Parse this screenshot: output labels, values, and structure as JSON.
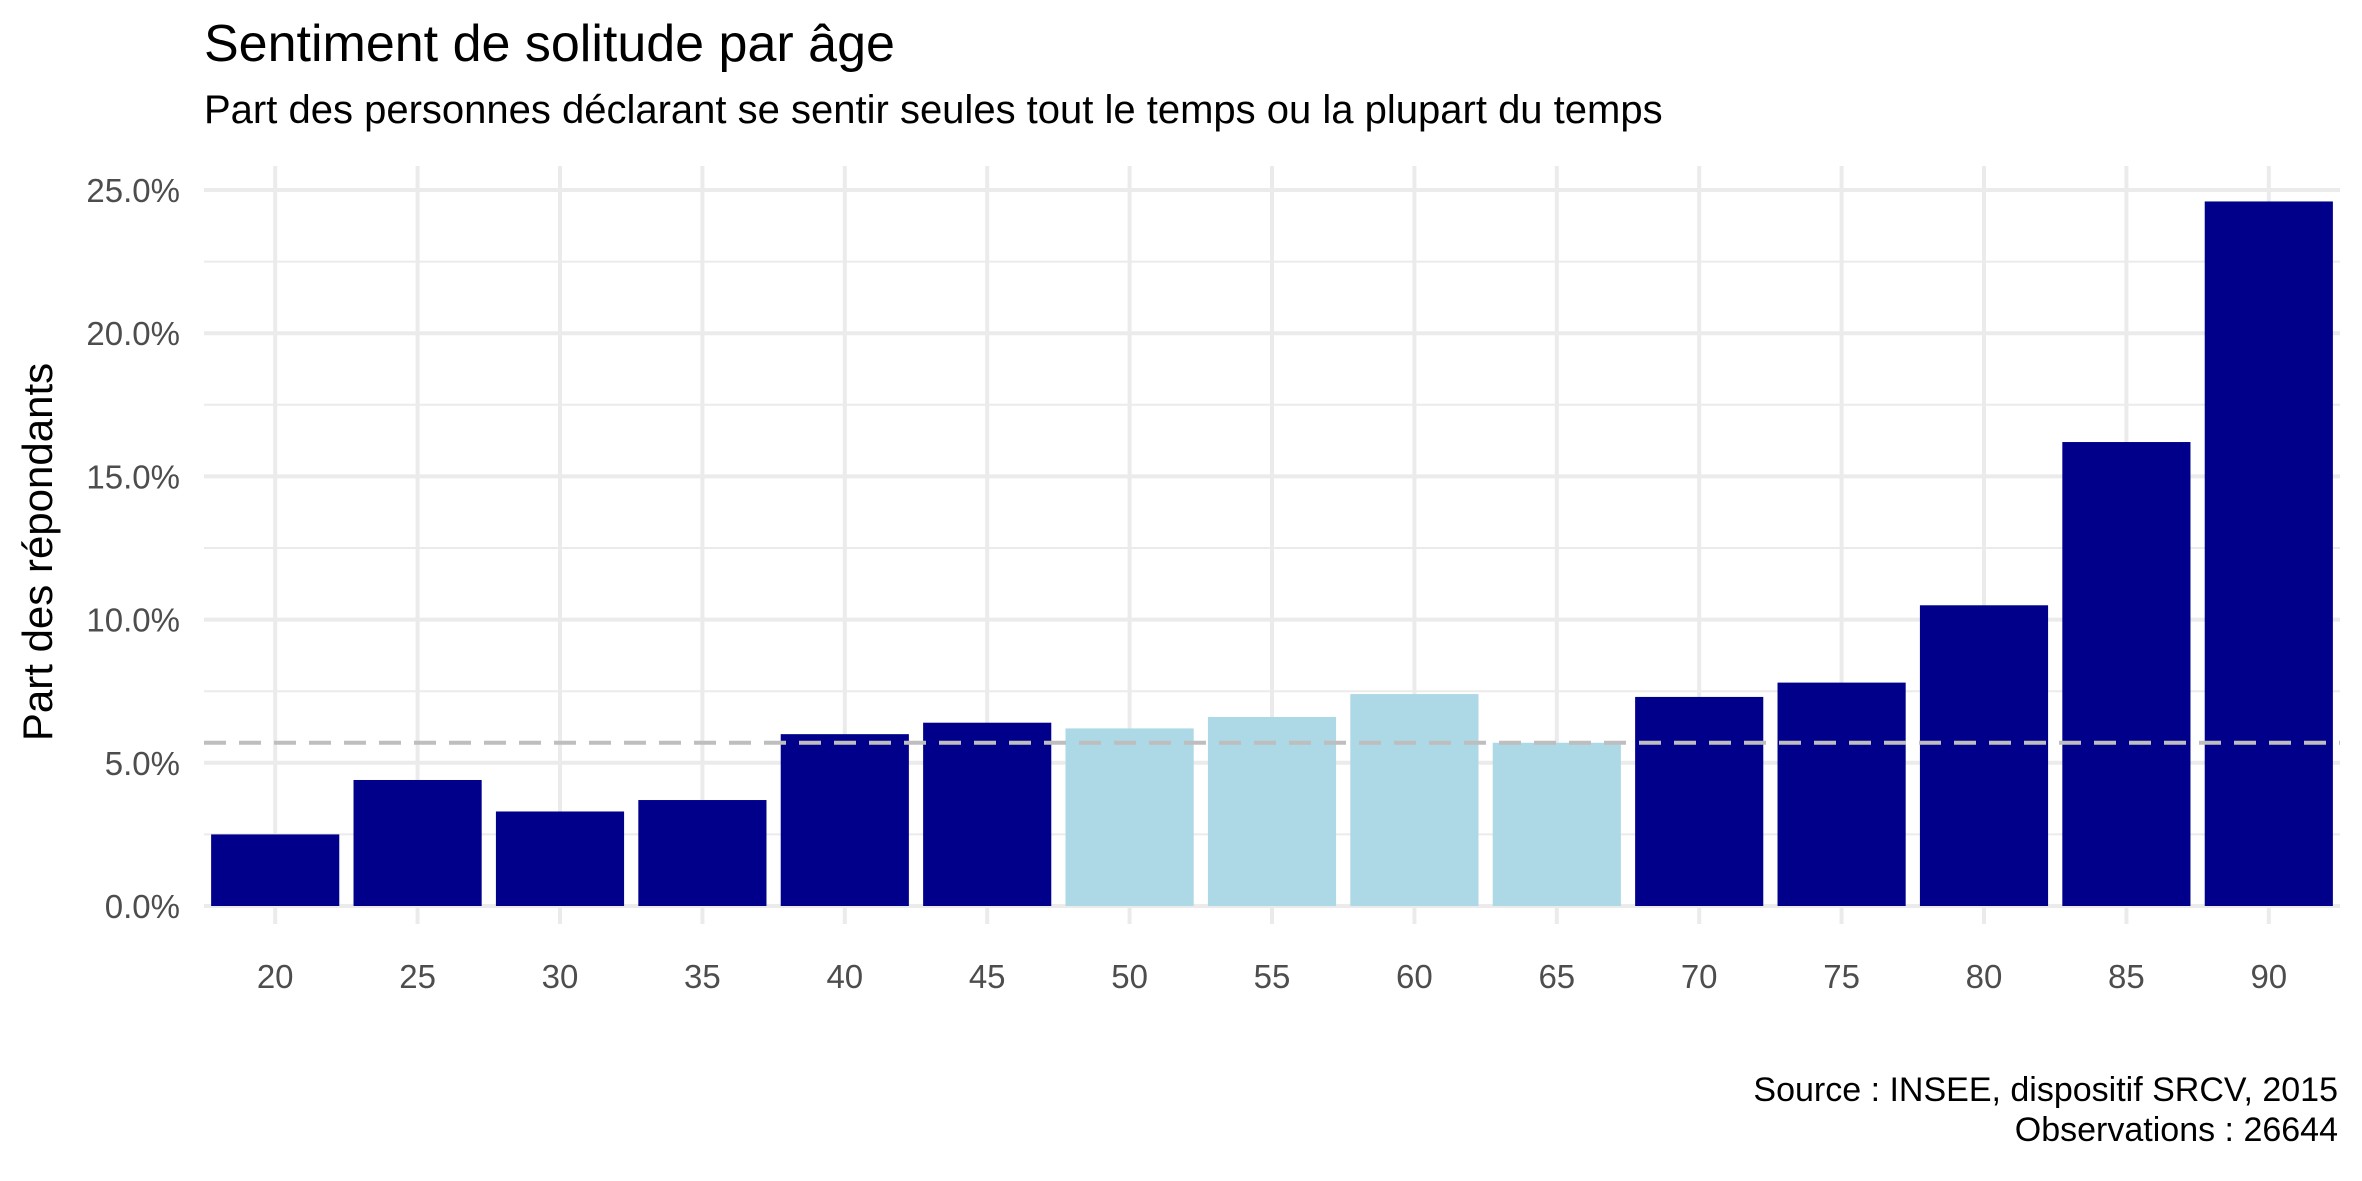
{
  "chart_data": {
    "type": "bar",
    "title": "Sentiment de solitude par âge",
    "subtitle": "Part des personnes déclarant se sentir seules tout le temps ou la plupart du temps",
    "xlabel": "",
    "ylabel": "Part des répondants",
    "categories": [
      "20",
      "25",
      "30",
      "35",
      "40",
      "45",
      "50",
      "55",
      "60",
      "65",
      "70",
      "75",
      "80",
      "85",
      "90"
    ],
    "values": [
      2.5,
      4.4,
      3.3,
      3.7,
      6.0,
      6.4,
      6.2,
      6.6,
      7.4,
      5.7,
      7.3,
      7.8,
      10.5,
      16.2,
      24.6
    ],
    "highlight": [
      false,
      false,
      false,
      false,
      false,
      false,
      true,
      true,
      true,
      true,
      false,
      false,
      false,
      false,
      false
    ],
    "reference_line": 5.7,
    "ylim": [
      0,
      25
    ],
    "yticks": [
      0,
      5,
      10,
      15,
      20,
      25
    ],
    "ytick_labels": [
      "0.0%",
      "5.0%",
      "10.0%",
      "15.0%",
      "20.0%",
      "25.0%"
    ],
    "grid": true,
    "legend": "none",
    "colors": {
      "bar": "#00008B",
      "bar_highlight": "#ADD8E6",
      "reference_line": "#BEBEBE",
      "grid": "#EBEBEB"
    }
  },
  "caption": {
    "source": "Source : INSEE, dispositif SRCV, 2015",
    "observations": "Observations : 26644"
  }
}
